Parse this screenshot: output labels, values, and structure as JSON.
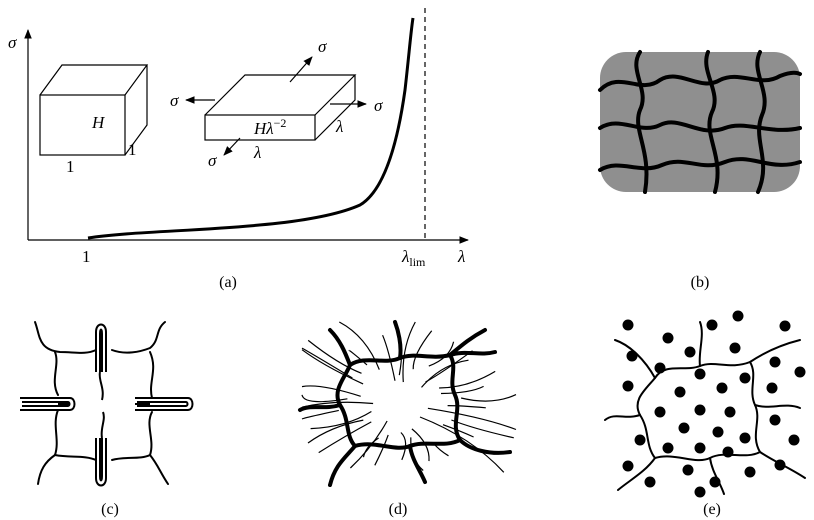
{
  "panels": [
    {
      "caption": "(a)",
      "y_axis_label": "σ",
      "x_axis_label": "λ",
      "x_start_label": "1",
      "limit_label": {
        "base": "λ",
        "subscript": "lim"
      },
      "cube": {
        "height_label": "H",
        "width_label": "1",
        "depth_label": "1"
      },
      "slab": {
        "thickness_label": {
          "base": "Hλ",
          "superscript": "−2"
        },
        "width_label": "λ",
        "depth_label": "λ",
        "stress_labels": [
          "σ",
          "σ",
          "σ",
          "σ"
        ]
      }
    },
    {
      "caption": "(b)"
    },
    {
      "caption": "(c)"
    },
    {
      "caption": "(d)"
    },
    {
      "caption": "(e)"
    }
  ]
}
